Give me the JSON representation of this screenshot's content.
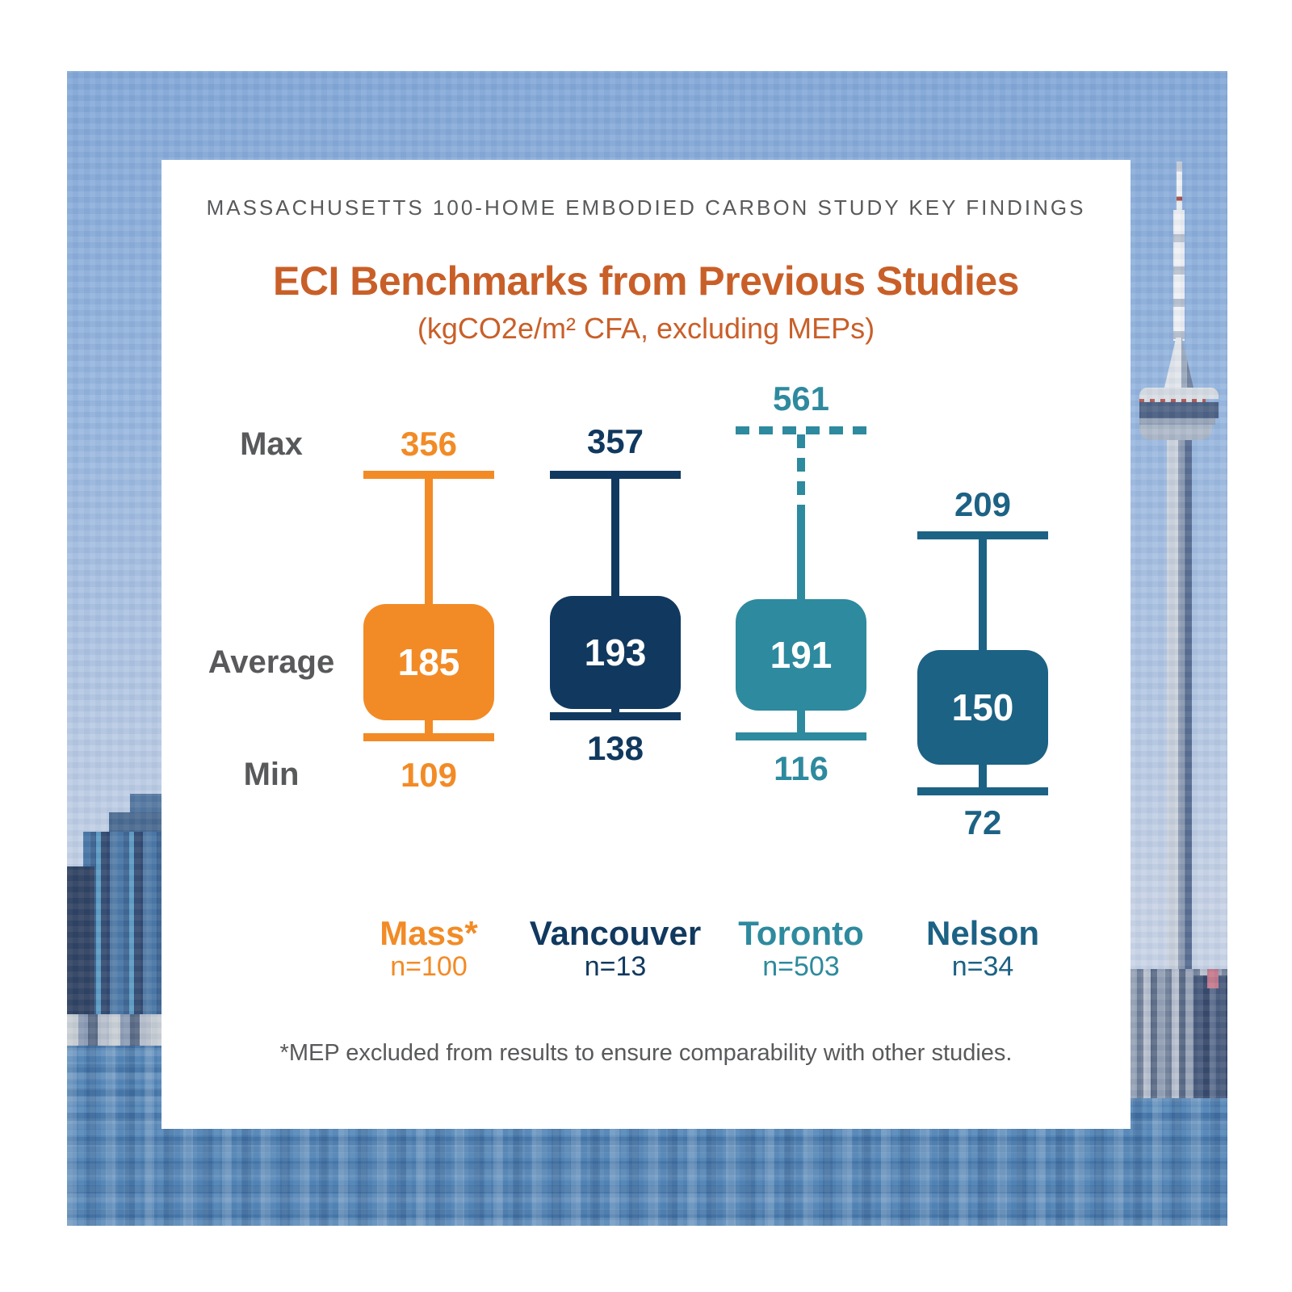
{
  "header": {
    "eyebrow": "MASSACHUSETTS 100-HOME EMBODIED CARBON STUDY KEY FINDINGS",
    "title": "ECI Benchmarks from Previous Studies",
    "subtitle": "(kgCO2e/m² CFA, excluding MEPs)"
  },
  "axis_labels": {
    "max": "Max",
    "average": "Average",
    "min": "Min"
  },
  "footnote": "*MEP excluded from results to ensure comparability with other studies.",
  "colors": {
    "title_orange": "#c95f28",
    "text_gray": "#58595b",
    "mass_orange": "#f28b26",
    "vancouver_navy": "#11395f",
    "toronto_teal": "#2e8a9e",
    "nelson_blue": "#1c6284"
  },
  "chart_data": {
    "type": "box-range",
    "title": "ECI Benchmarks from Previous Studies",
    "unit": "(kgCO2e/m² CFA, excluding MEPs)",
    "row_labels": [
      "Max",
      "Average",
      "Min"
    ],
    "categories": [
      "Mass*",
      "Vancouver",
      "Toronto",
      "Nelson"
    ],
    "series": [
      {
        "name": "Mass*",
        "sample": "n=100",
        "max": 356,
        "average": 185,
        "min": 109,
        "color": "#f28b26",
        "max_whisker_style": "solid"
      },
      {
        "name": "Vancouver",
        "sample": "n=13",
        "max": 357,
        "average": 193,
        "min": 138,
        "color": "#11395f",
        "max_whisker_style": "solid"
      },
      {
        "name": "Toronto",
        "sample": "n=503",
        "max": 561,
        "average": 191,
        "min": 116,
        "color": "#2e8a9e",
        "max_whisker_style": "dashed"
      },
      {
        "name": "Nelson",
        "sample": "n=34",
        "max": 209,
        "average": 150,
        "min": 72,
        "color": "#1c6284",
        "max_whisker_style": "solid"
      }
    ]
  }
}
